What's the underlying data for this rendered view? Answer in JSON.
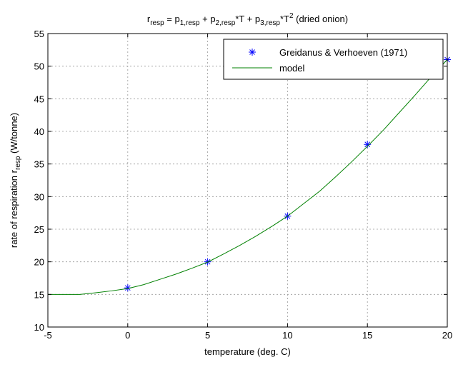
{
  "chart_data": {
    "type": "line",
    "title": {
      "parts": [
        {
          "t": "r",
          "s": "n"
        },
        {
          "t": "resp",
          "s": "sub"
        },
        {
          "t": " = p",
          "s": "n"
        },
        {
          "t": "1,resp",
          "s": "sub"
        },
        {
          "t": " + p",
          "s": "n"
        },
        {
          "t": "2,resp",
          "s": "sub"
        },
        {
          "t": "*T + p",
          "s": "n"
        },
        {
          "t": "3,resp",
          "s": "sub"
        },
        {
          "t": "*T",
          "s": "n"
        },
        {
          "t": "2",
          "s": "sup"
        },
        {
          "t": " (dried onion)",
          "s": "n"
        }
      ]
    },
    "xlabel": "temperature (deg. C)",
    "ylabel": {
      "parts": [
        {
          "t": "rate of respiration r",
          "s": "n"
        },
        {
          "t": "resp",
          "s": "sub"
        },
        {
          "t": " (W/tonne)",
          "s": "n"
        }
      ]
    },
    "xlim": [
      -5,
      20
    ],
    "ylim": [
      10,
      55
    ],
    "xticks": [
      -5,
      0,
      5,
      10,
      15,
      20
    ],
    "yticks": [
      10,
      15,
      20,
      25,
      30,
      35,
      40,
      45,
      50,
      55
    ],
    "grid": true,
    "legend_position": "top-right",
    "series": [
      {
        "name": "Greidanus & Verhoeven (1971)",
        "kind": "markers",
        "marker": "asterisk",
        "color": "#0000ff",
        "x": [
          0,
          5,
          10,
          15,
          20
        ],
        "y": [
          16,
          20,
          27,
          38,
          51
        ]
      },
      {
        "name": "model",
        "kind": "line",
        "color": "#008000",
        "x": [
          -5,
          -4,
          -3,
          -2,
          -1,
          0,
          1,
          2,
          3,
          4,
          5,
          6,
          7,
          8,
          9,
          10,
          11,
          12,
          13,
          14,
          15,
          16,
          17,
          18,
          19,
          20
        ],
        "y": [
          15.0,
          15.0,
          15.0,
          15.25,
          15.55,
          15.9,
          16.5,
          17.3,
          18.1,
          19.0,
          19.95,
          21.2,
          22.5,
          23.9,
          25.4,
          27.0,
          28.9,
          30.8,
          33.0,
          35.3,
          37.7,
          40.2,
          42.9,
          45.6,
          48.4,
          51.0
        ]
      }
    ]
  }
}
